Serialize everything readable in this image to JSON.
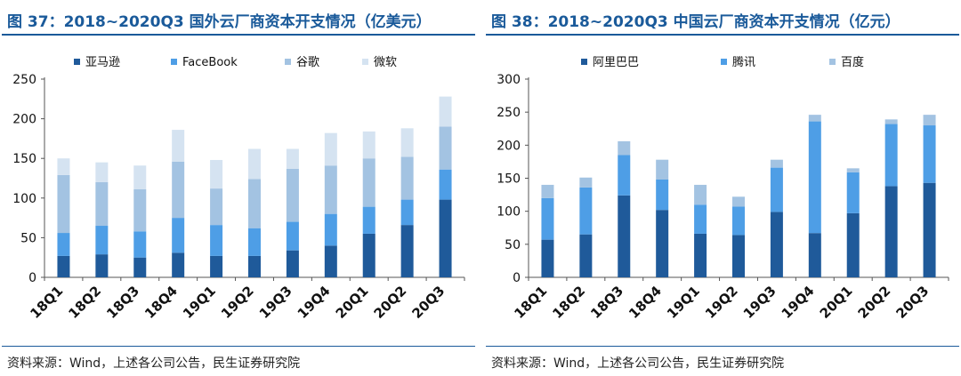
{
  "left": {
    "title": "图 37：2018~2020Q3 国外云厂商资本开支情况（亿美元）",
    "source": "资料来源：Wind，上述各公司公告，民生证券研究院",
    "chart_data": {
      "type": "bar",
      "stacked": true,
      "categories": [
        "18Q1",
        "18Q2",
        "18Q3",
        "18Q4",
        "19Q1",
        "19Q2",
        "19Q3",
        "19Q4",
        "20Q1",
        "20Q2",
        "20Q3"
      ],
      "series": [
        {
          "name": "亚马逊",
          "color": "#1f5a9a",
          "values": [
            27,
            29,
            25,
            31,
            27,
            27,
            34,
            40,
            55,
            66,
            98
          ]
        },
        {
          "name": "FaceBook",
          "color": "#4e9ee6",
          "values": [
            29,
            36,
            33,
            44,
            39,
            35,
            36,
            40,
            34,
            32,
            38
          ]
        },
        {
          "name": "谷歌",
          "color": "#a3c3e2",
          "values": [
            73,
            55,
            53,
            71,
            46,
            62,
            67,
            61,
            61,
            54,
            54
          ]
        },
        {
          "name": "微软",
          "color": "#d5e3f1",
          "values": [
            21,
            25,
            30,
            40,
            36,
            38,
            25,
            41,
            34,
            36,
            38
          ]
        }
      ],
      "yticks": [
        0,
        50,
        100,
        150,
        200,
        250
      ],
      "ylim": [
        0,
        250
      ],
      "legend_position": "top"
    }
  },
  "right": {
    "title": "图 38：2018~2020Q3 中国云厂商资本开支情况（亿元）",
    "source": "资料来源：Wind，上述各公司公告，民生证券研究院",
    "chart_data": {
      "type": "bar",
      "stacked": true,
      "categories": [
        "18Q1",
        "18Q2",
        "18Q3",
        "18Q4",
        "19Q1",
        "19Q2",
        "19Q3",
        "19Q4",
        "20Q1",
        "20Q2",
        "20Q3"
      ],
      "series": [
        {
          "name": "阿里巴巴",
          "color": "#1f5a9a",
          "values": [
            57,
            65,
            124,
            102,
            66,
            64,
            99,
            67,
            97,
            138,
            143
          ]
        },
        {
          "name": "腾讯",
          "color": "#4e9ee6",
          "values": [
            63,
            71,
            61,
            46,
            44,
            43,
            67,
            169,
            62,
            94,
            87
          ]
        },
        {
          "name": "百度",
          "color": "#a3c3e2",
          "values": [
            20,
            15,
            21,
            30,
            30,
            15,
            12,
            10,
            6,
            7,
            16
          ]
        }
      ],
      "yticks": [
        0,
        50,
        100,
        150,
        200,
        250,
        300
      ],
      "ylim": [
        0,
        300
      ],
      "legend_position": "top"
    }
  }
}
